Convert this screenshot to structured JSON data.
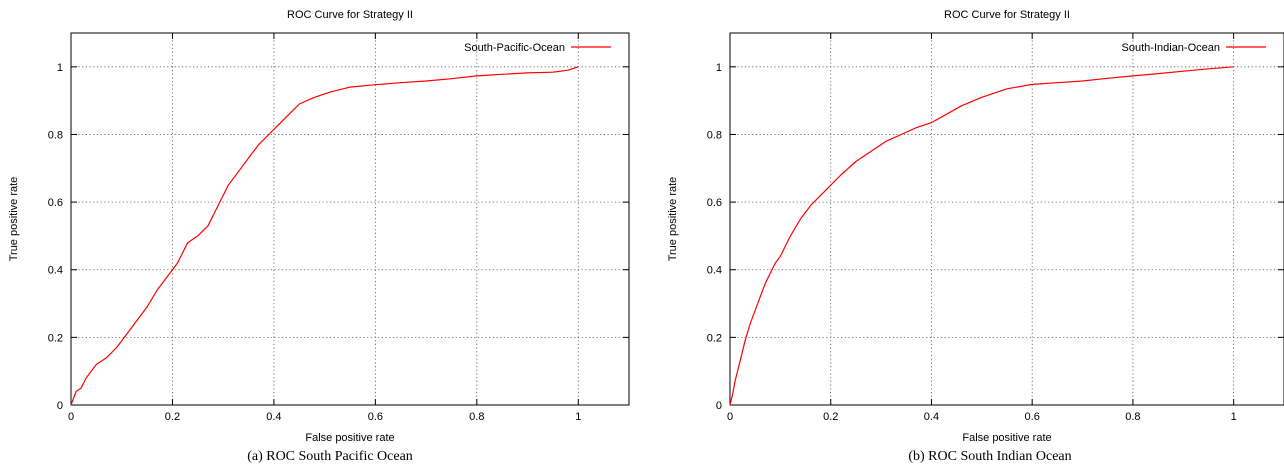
{
  "chart_data": [
    {
      "type": "line",
      "title": "ROC Curve for Strategy II",
      "xlabel": "False positive rate",
      "ylabel": "True positive rate",
      "caption": "(a) ROC South Pacific Ocean",
      "xlim": [
        0,
        1.1
      ],
      "ylim": [
        0,
        1.1
      ],
      "xticks": [
        "0",
        "0.2",
        "0.4",
        "0.6",
        "0.8",
        "1"
      ],
      "yticks": [
        "0",
        "0.2",
        "0.4",
        "0.6",
        "0.8",
        "1"
      ],
      "grid": true,
      "legend_position": "top-right",
      "series": [
        {
          "name": "South-Pacific-Ocean",
          "color": "#ff0000",
          "x": [
            0,
            0.005,
            0.01,
            0.02,
            0.03,
            0.05,
            0.07,
            0.09,
            0.11,
            0.13,
            0.15,
            0.17,
            0.19,
            0.21,
            0.23,
            0.25,
            0.27,
            0.29,
            0.31,
            0.33,
            0.35,
            0.37,
            0.39,
            0.41,
            0.43,
            0.45,
            0.48,
            0.51,
            0.55,
            0.6,
            0.65,
            0.7,
            0.75,
            0.8,
            0.85,
            0.9,
            0.95,
            0.98,
            1.0
          ],
          "y": [
            0,
            0.02,
            0.04,
            0.05,
            0.08,
            0.12,
            0.14,
            0.17,
            0.21,
            0.25,
            0.29,
            0.34,
            0.38,
            0.42,
            0.48,
            0.5,
            0.53,
            0.59,
            0.65,
            0.69,
            0.73,
            0.77,
            0.8,
            0.83,
            0.86,
            0.89,
            0.91,
            0.925,
            0.94,
            0.947,
            0.953,
            0.958,
            0.965,
            0.973,
            0.978,
            0.982,
            0.984,
            0.99,
            1.0
          ]
        }
      ]
    },
    {
      "type": "line",
      "title": "ROC Curve for Strategy II",
      "xlabel": "False positive rate",
      "ylabel": "True positive rate",
      "caption": "(b) ROC South Indian Ocean",
      "xlim": [
        0,
        1.1
      ],
      "ylim": [
        0,
        1.1
      ],
      "xticks": [
        "0",
        "0.2",
        "0.4",
        "0.6",
        "0.8",
        "1"
      ],
      "yticks": [
        "0",
        "0.2",
        "0.4",
        "0.6",
        "0.8",
        "1"
      ],
      "grid": true,
      "legend_position": "top-right",
      "series": [
        {
          "name": "South-Indian-Ocean",
          "color": "#ff0000",
          "x": [
            0,
            0.005,
            0.01,
            0.02,
            0.03,
            0.04,
            0.05,
            0.06,
            0.07,
            0.08,
            0.09,
            0.1,
            0.12,
            0.14,
            0.16,
            0.18,
            0.2,
            0.22,
            0.25,
            0.28,
            0.31,
            0.34,
            0.37,
            0.4,
            0.43,
            0.46,
            0.5,
            0.55,
            0.6,
            0.65,
            0.7,
            0.75,
            0.8,
            0.85,
            0.9,
            0.95,
            1.0
          ],
          "y": [
            0,
            0.03,
            0.07,
            0.13,
            0.19,
            0.24,
            0.28,
            0.32,
            0.36,
            0.39,
            0.42,
            0.44,
            0.5,
            0.55,
            0.59,
            0.62,
            0.65,
            0.68,
            0.72,
            0.75,
            0.78,
            0.8,
            0.82,
            0.835,
            0.86,
            0.885,
            0.91,
            0.935,
            0.948,
            0.953,
            0.958,
            0.966,
            0.973,
            0.98,
            0.987,
            0.994,
            1.0
          ]
        }
      ]
    }
  ]
}
